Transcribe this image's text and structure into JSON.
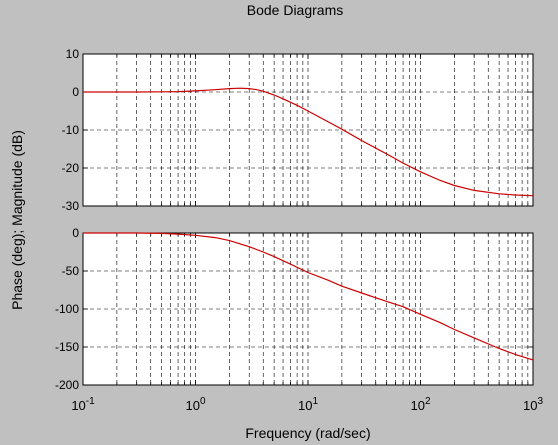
{
  "chart_data": {
    "type": "line",
    "title": "Bode Diagrams",
    "xlabel": "Frequency (rad/sec)",
    "ylabel": "Phase (deg); Magnitude (dB)",
    "xscale": "log",
    "x_ticks": [
      {
        "base": "10",
        "exp": "-1"
      },
      {
        "base": "10",
        "exp": "0"
      },
      {
        "base": "10",
        "exp": "1"
      },
      {
        "base": "10",
        "exp": "2"
      },
      {
        "base": "10",
        "exp": "3"
      }
    ],
    "grid": true,
    "line_color": "#cc0000",
    "panels": [
      {
        "name": "magnitude",
        "ylim": [
          -30,
          10
        ],
        "yticks": [
          "10",
          "0",
          "-10",
          "-20",
          "-30"
        ],
        "series": [
          {
            "x": [
              0.1,
              0.3,
              0.5,
              0.7,
              1.0,
              1.5,
              2.0,
              2.5,
              3.0,
              3.5,
              4.0,
              5.0,
              6.0,
              8.0,
              10,
              15,
              20,
              30,
              50,
              70,
              100,
              150,
              200,
              300,
              500,
              700,
              1000
            ],
            "values": [
              0,
              0,
              0.05,
              0.1,
              0.3,
              0.6,
              0.9,
              1.0,
              0.9,
              0.6,
              0.2,
              -0.8,
              -1.8,
              -3.5,
              -5.0,
              -7.8,
              -9.8,
              -12.8,
              -16.3,
              -18.7,
              -21.0,
              -23.3,
              -24.6,
              -25.9,
              -26.8,
              -27.1,
              -27.3
            ]
          }
        ]
      },
      {
        "name": "phase",
        "ylim": [
          -200,
          0
        ],
        "yticks": [
          "0",
          "-50",
          "-100",
          "-150",
          "-200"
        ],
        "series": [
          {
            "x": [
              0.1,
              0.3,
              0.5,
              0.7,
              1.0,
              1.5,
              2.0,
              3.0,
              4.0,
              5.0,
              7.0,
              10,
              15,
              20,
              30,
              50,
              70,
              100,
              150,
              200,
              300,
              500,
              700,
              1000
            ],
            "values": [
              0,
              0,
              -0.5,
              -1.5,
              -3,
              -6,
              -10,
              -18,
              -25,
              -31,
              -41,
              -52,
              -62,
              -70,
              -79,
              -90,
              -97,
              -107,
              -118,
              -127,
              -138,
              -152,
              -160,
              -167
            ]
          }
        ]
      }
    ]
  }
}
